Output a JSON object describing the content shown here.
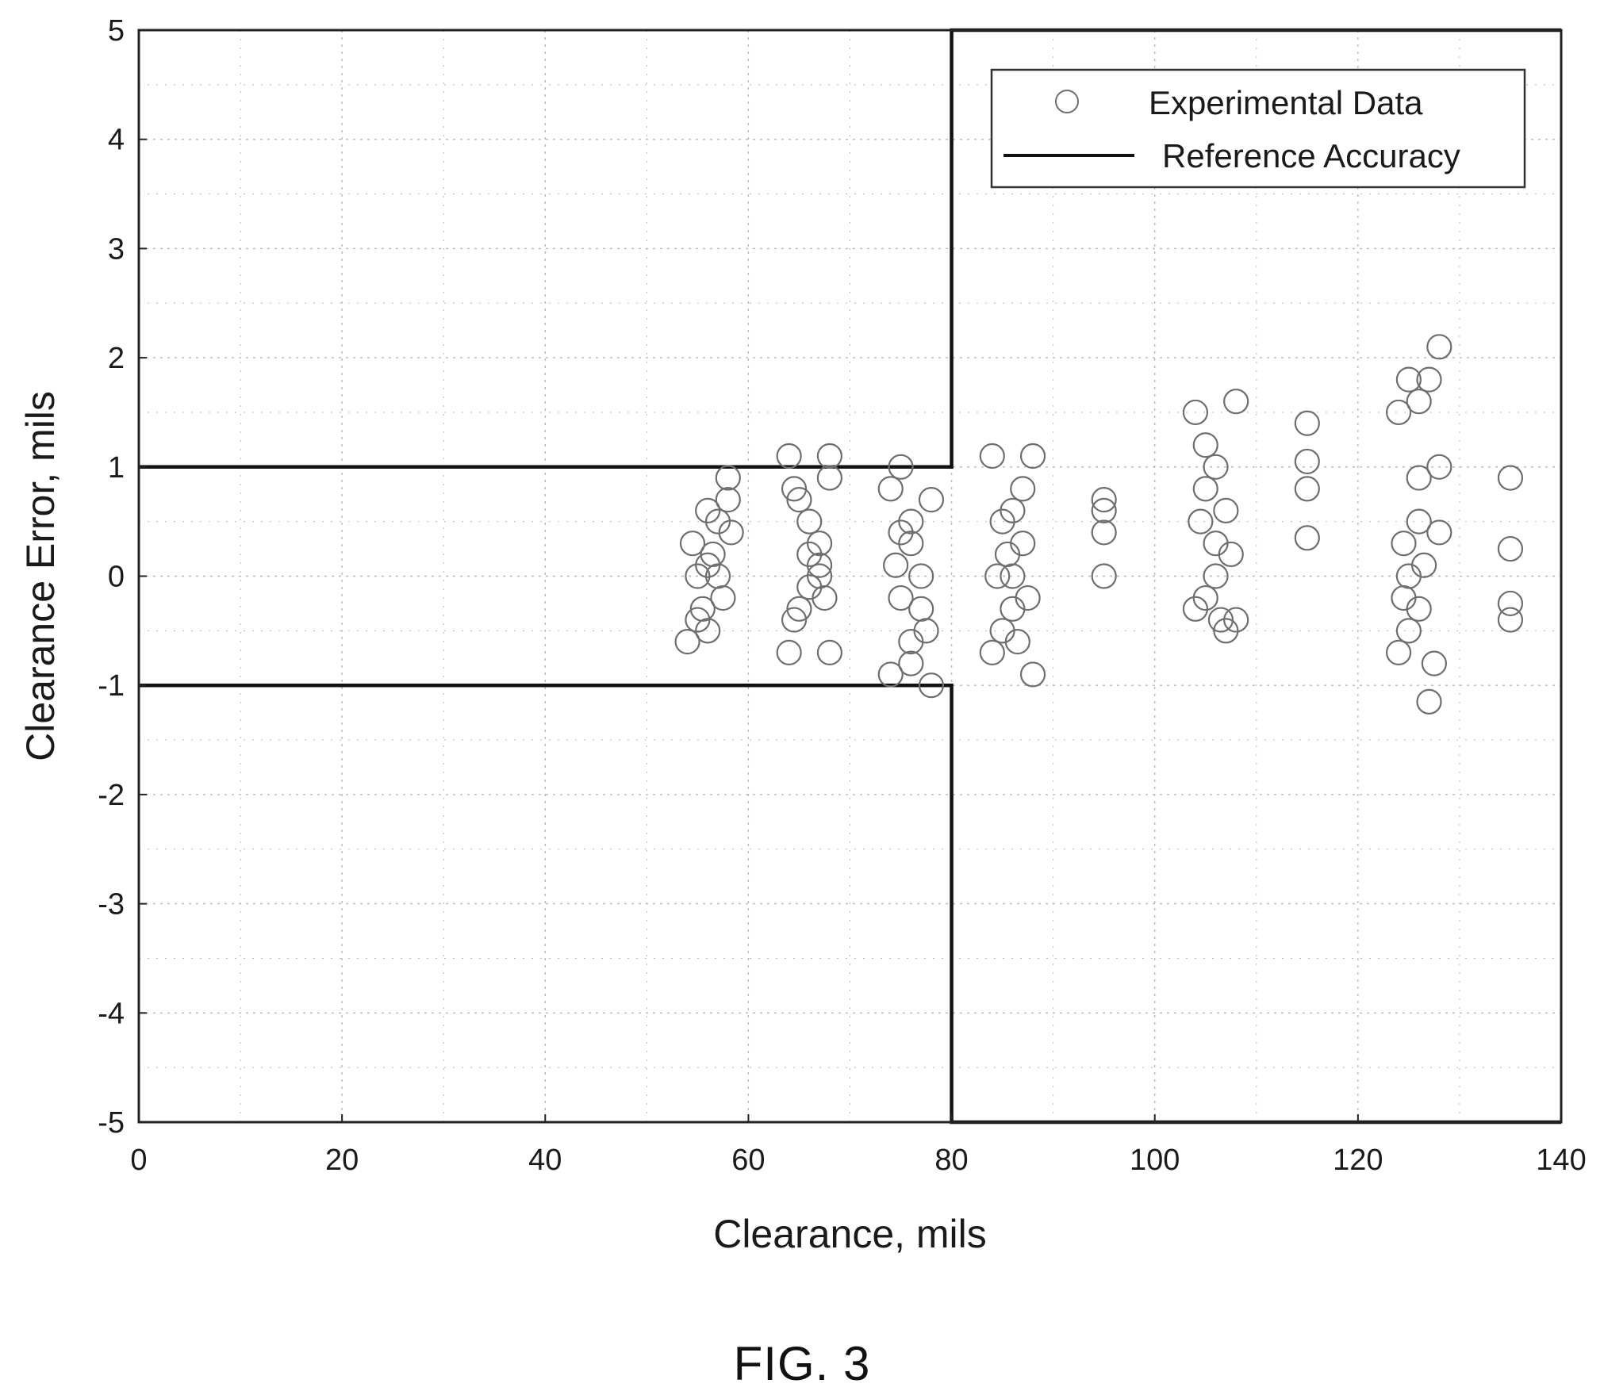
{
  "caption": "FIG. 3",
  "chart_data": {
    "type": "scatter",
    "xlabel": "Clearance, mils",
    "ylabel": "Clearance Error, mils",
    "xlim": [
      0,
      140
    ],
    "ylim": [
      -5,
      5
    ],
    "xticks": [
      0,
      20,
      40,
      60,
      80,
      100,
      120,
      140
    ],
    "yticks": [
      -5,
      -4,
      -3,
      -2,
      -1,
      0,
      1,
      2,
      3,
      4,
      5
    ],
    "grid": true,
    "legend": {
      "placement": "top-right",
      "entries": [
        {
          "label": "Experimental Data",
          "marker": "open-circle"
        },
        {
          "label": "Reference Accuracy",
          "marker": "line"
        }
      ]
    },
    "colors": {
      "data": "#6e6e6e",
      "reference": "#111111",
      "grid": "#b8b8b8"
    },
    "series": [
      {
        "name": "Reference Accuracy",
        "type": "line",
        "segments": [
          [
            [
              0,
              1
            ],
            [
              80,
              1
            ],
            [
              80,
              5
            ],
            [
              140,
              5
            ]
          ],
          [
            [
              0,
              -1
            ],
            [
              80,
              -1
            ],
            [
              80,
              -5
            ],
            [
              140,
              -5
            ]
          ]
        ]
      },
      {
        "name": "Experimental Data",
        "type": "scatter",
        "points": [
          [
            55,
            0.0
          ],
          [
            54.5,
            0.3
          ],
          [
            56,
            -0.5
          ],
          [
            57,
            0.5
          ],
          [
            58,
            0.9
          ],
          [
            55.5,
            -0.3
          ],
          [
            56.5,
            0.2
          ],
          [
            57.5,
            -0.2
          ],
          [
            54,
            -0.6
          ],
          [
            58,
            0.7
          ],
          [
            56,
            0.6
          ],
          [
            55,
            -0.4
          ],
          [
            57,
            0.0
          ],
          [
            56,
            0.1
          ],
          [
            58.3,
            0.4
          ],
          [
            64,
            1.1
          ],
          [
            65,
            0.7
          ],
          [
            66,
            0.2
          ],
          [
            67,
            0.0
          ],
          [
            68,
            0.9
          ],
          [
            64,
            -0.7
          ],
          [
            68,
            -0.7
          ],
          [
            66,
            0.5
          ],
          [
            65,
            -0.3
          ],
          [
            67,
            0.3
          ],
          [
            64.5,
            -0.4
          ],
          [
            67.5,
            -0.2
          ],
          [
            66,
            -0.1
          ],
          [
            68,
            1.1
          ],
          [
            64.5,
            0.8
          ],
          [
            67,
            0.1
          ],
          [
            74,
            0.8
          ],
          [
            75,
            1.0
          ],
          [
            76,
            0.3
          ],
          [
            77,
            -0.3
          ],
          [
            78,
            -1.0
          ],
          [
            74,
            -0.9
          ],
          [
            76,
            -0.6
          ],
          [
            77,
            0.0
          ],
          [
            75,
            -0.2
          ],
          [
            78,
            0.7
          ],
          [
            76,
            0.5
          ],
          [
            74.5,
            0.1
          ],
          [
            77.5,
            -0.5
          ],
          [
            76,
            -0.8
          ],
          [
            75,
            0.4
          ],
          [
            84,
            1.1
          ],
          [
            85,
            0.5
          ],
          [
            86,
            0.0
          ],
          [
            87,
            0.3
          ],
          [
            88,
            -0.9
          ],
          [
            84,
            -0.7
          ],
          [
            86,
            -0.3
          ],
          [
            88,
            1.1
          ],
          [
            85,
            -0.5
          ],
          [
            87,
            0.8
          ],
          [
            86,
            0.6
          ],
          [
            84.5,
            0.0
          ],
          [
            87.5,
            -0.2
          ],
          [
            85.5,
            0.2
          ],
          [
            86.5,
            -0.6
          ],
          [
            95,
            0.7
          ],
          [
            95,
            0.4
          ],
          [
            95,
            0.0
          ],
          [
            95,
            0.6
          ],
          [
            104,
            1.5
          ],
          [
            105,
            0.8
          ],
          [
            106,
            0.3
          ],
          [
            107,
            -0.5
          ],
          [
            108,
            1.6
          ],
          [
            104,
            -0.3
          ],
          [
            106,
            0.0
          ],
          [
            108,
            -0.4
          ],
          [
            105,
            1.2
          ],
          [
            107,
            0.6
          ],
          [
            106,
            1.0
          ],
          [
            105,
            -0.2
          ],
          [
            107.5,
            0.2
          ],
          [
            104.5,
            0.5
          ],
          [
            106.5,
            -0.4
          ],
          [
            115,
            1.4
          ],
          [
            115,
            1.05
          ],
          [
            115,
            0.8
          ],
          [
            115,
            0.35
          ],
          [
            124,
            1.5
          ],
          [
            125,
            1.8
          ],
          [
            126,
            1.6
          ],
          [
            127,
            1.8
          ],
          [
            128,
            2.1
          ],
          [
            124,
            -0.7
          ],
          [
            126,
            -0.3
          ],
          [
            127,
            -1.15
          ],
          [
            128,
            0.4
          ],
          [
            125,
            0.0
          ],
          [
            126,
            0.5
          ],
          [
            124.5,
            0.3
          ],
          [
            127.5,
            -0.8
          ],
          [
            126,
            0.9
          ],
          [
            125,
            -0.5
          ],
          [
            128,
            1.0
          ],
          [
            126.5,
            0.1
          ],
          [
            124.5,
            -0.2
          ],
          [
            135,
            0.9
          ],
          [
            135,
            0.25
          ],
          [
            135,
            -0.25
          ],
          [
            135,
            -0.4
          ]
        ]
      }
    ]
  }
}
